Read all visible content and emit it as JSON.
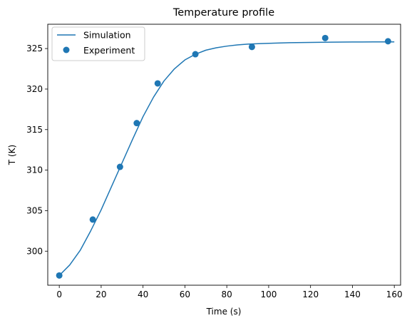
{
  "chart_data": {
    "type": "line",
    "title": "Temperature profile",
    "xlabel": "Time (s)",
    "ylabel": "T (K)",
    "xlim": [
      -5.5,
      163
    ],
    "ylim": [
      295.8,
      328.0
    ],
    "xticks": [
      0,
      20,
      40,
      60,
      80,
      100,
      120,
      140,
      160
    ],
    "yticks": [
      300,
      305,
      310,
      315,
      320,
      325
    ],
    "grid": false,
    "legend_position": "upper-left",
    "colors": {
      "series": "#1f77b4"
    },
    "series": [
      {
        "name": "Simulation",
        "type": "line",
        "x": [
          0,
          5,
          10,
          15,
          20,
          25,
          30,
          35,
          40,
          45,
          50,
          55,
          60,
          65,
          70,
          75,
          80,
          85,
          90,
          95,
          100,
          110,
          120,
          130,
          140,
          150,
          160
        ],
        "y": [
          297.0,
          298.3,
          300.1,
          302.5,
          305.1,
          308.0,
          310.9,
          313.8,
          316.6,
          319.0,
          321.0,
          322.5,
          323.6,
          324.3,
          324.8,
          325.1,
          325.3,
          325.45,
          325.55,
          325.6,
          325.65,
          325.72,
          325.76,
          325.79,
          325.81,
          325.82,
          325.82
        ]
      },
      {
        "name": "Experiment",
        "type": "scatter",
        "x": [
          0,
          16,
          29,
          37,
          47,
          65,
          92,
          127,
          157
        ],
        "y": [
          297.0,
          303.9,
          310.4,
          315.8,
          320.7,
          324.3,
          325.2,
          326.3,
          325.9
        ]
      }
    ]
  }
}
